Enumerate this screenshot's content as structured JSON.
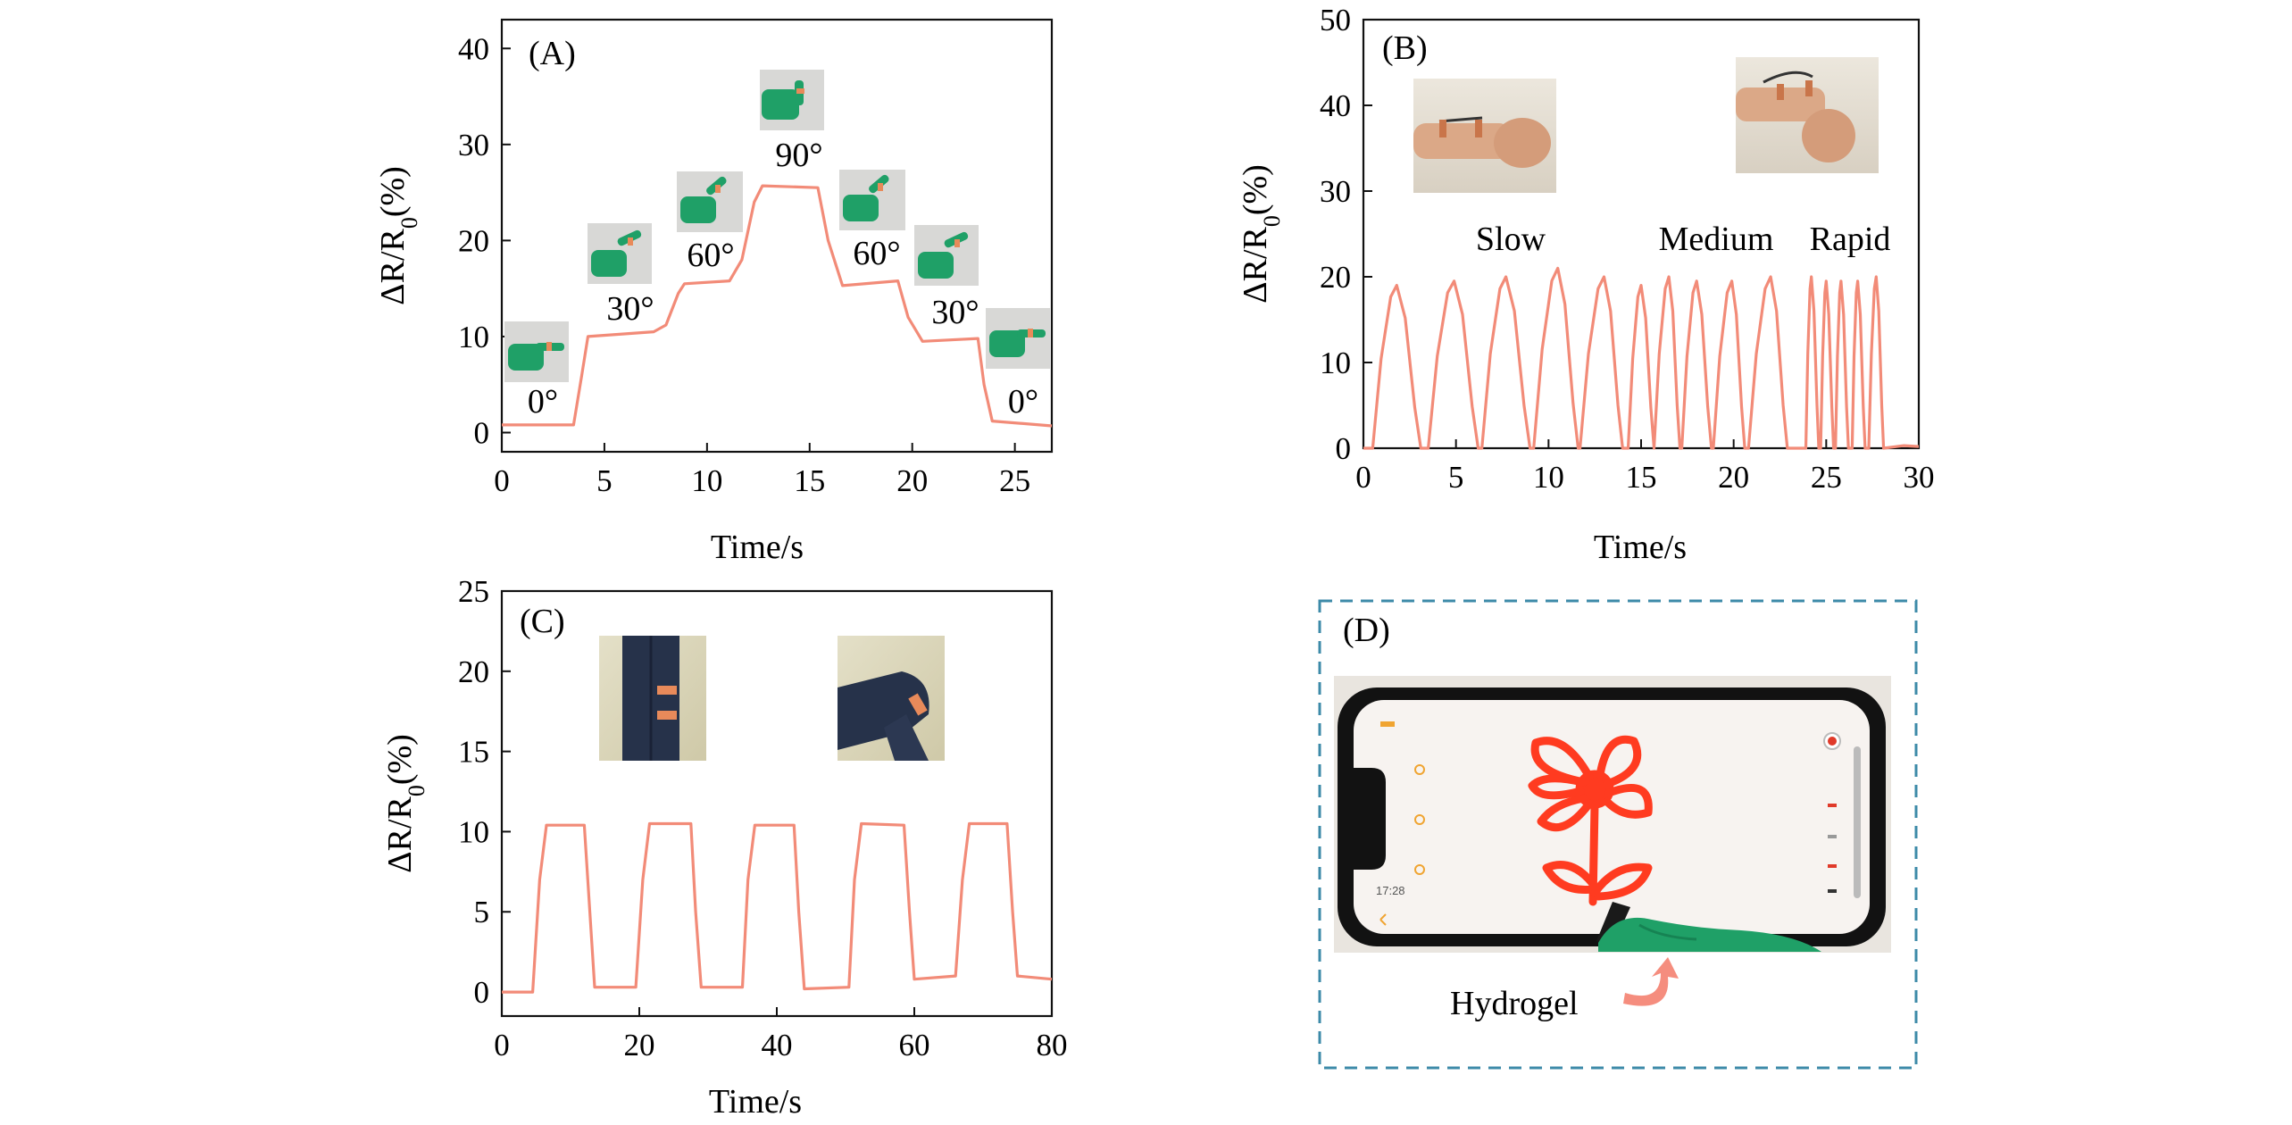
{
  "colors": {
    "trace": "#f28b78",
    "dashed_box": "#3c8aa8",
    "glove": "#1fa067",
    "drawing": "#ff3b20"
  },
  "chart_data": [
    {
      "id": "A",
      "type": "line",
      "panel_label": "(A)",
      "xlabel": "Time/s",
      "ylabel_pre": "ΔR/R",
      "ylabel_sub": "0",
      "ylabel_post": "(%)",
      "xlim": [
        0,
        26.8
      ],
      "ylim": [
        -2,
        43
      ],
      "xticks": [
        0,
        5,
        10,
        15,
        20,
        25
      ],
      "yticks": [
        0,
        10,
        20,
        30,
        40
      ],
      "series": [
        {
          "x": [
            0,
            3.5,
            3.9,
            4.2,
            7.4,
            8.0,
            8.6,
            8.9,
            11.1,
            11.7,
            12.3,
            12.7,
            15.4,
            15.9,
            16.6,
            19.3,
            19.8,
            20.5,
            23.2,
            23.5,
            23.9,
            26.8
          ],
          "y": [
            0.8,
            0.8,
            6,
            10,
            10.5,
            11.2,
            14.5,
            15.5,
            15.8,
            18,
            24,
            25.7,
            25.5,
            20,
            15.3,
            15.8,
            12,
            9.5,
            9.8,
            5,
            1.2,
            0.7
          ]
        }
      ],
      "annotations": [
        "0°",
        "30°",
        "60°",
        "90°",
        "60°",
        "30°",
        "0°"
      ]
    },
    {
      "id": "B",
      "type": "line",
      "panel_label": "(B)",
      "xlabel": "Time/s",
      "ylabel_pre": "ΔR/R",
      "ylabel_sub": "0",
      "ylabel_post": "(%)",
      "xlim": [
        0,
        30
      ],
      "ylim": [
        0,
        50
      ],
      "xticks": [
        0,
        5,
        10,
        15,
        20,
        25,
        30
      ],
      "yticks": [
        0,
        10,
        20,
        30,
        40,
        50
      ],
      "series": [
        {
          "peaks": [
            {
              "s": 0.5,
              "p": 1.8,
              "e": 3.1,
              "v": 19
            },
            {
              "s": 3.5,
              "p": 4.9,
              "e": 6.2,
              "v": 19.5
            },
            {
              "s": 6.4,
              "p": 7.7,
              "e": 9.0,
              "v": 20
            },
            {
              "s": 9.2,
              "p": 10.5,
              "e": 11.6,
              "v": 21
            },
            {
              "s": 11.7,
              "p": 13.0,
              "e": 14.0,
              "v": 20
            },
            {
              "s": 14.3,
              "p": 15.0,
              "e": 15.7,
              "v": 19
            },
            {
              "s": 15.7,
              "p": 16.5,
              "e": 17.1,
              "v": 20
            },
            {
              "s": 17.2,
              "p": 18.0,
              "e": 18.8,
              "v": 19.5
            },
            {
              "s": 18.9,
              "p": 19.9,
              "e": 20.6,
              "v": 19.5
            },
            {
              "s": 20.8,
              "p": 22.0,
              "e": 22.9,
              "v": 20
            },
            {
              "s": 23.9,
              "p": 24.2,
              "e": 24.6,
              "v": 20
            },
            {
              "s": 24.7,
              "p": 25.0,
              "e": 25.4,
              "v": 19.5
            },
            {
              "s": 25.5,
              "p": 25.8,
              "e": 26.2,
              "v": 19.5
            },
            {
              "s": 26.4,
              "p": 26.7,
              "e": 27.1,
              "v": 19.5
            },
            {
              "s": 27.3,
              "p": 27.7,
              "e": 28.1,
              "v": 20
            }
          ]
        }
      ],
      "annotations": [
        "Slow",
        "Medium",
        "Rapid"
      ]
    },
    {
      "id": "C",
      "type": "line",
      "panel_label": "(C)",
      "xlabel": "Time/s",
      "ylabel_pre": "ΔR/R",
      "ylabel_sub": "0",
      "ylabel_post": "(%)",
      "xlim": [
        0,
        80
      ],
      "ylim": [
        -1.5,
        25
      ],
      "xticks": [
        0,
        20,
        40,
        60,
        80
      ],
      "yticks": [
        0,
        5,
        10,
        15,
        20,
        25
      ],
      "series": [
        {
          "x": [
            0,
            4.5,
            5.5,
            6.5,
            12,
            12.8,
            13.5,
            19.5,
            20.5,
            21.5,
            27.5,
            28.2,
            29,
            35,
            35.8,
            36.8,
            42.5,
            43.2,
            44,
            50.5,
            51.3,
            52.3,
            58.5,
            59.3,
            60,
            66,
            67,
            68,
            73.5,
            74.3,
            75,
            80
          ],
          "y": [
            0,
            0,
            7,
            10.4,
            10.4,
            5,
            0.3,
            0.3,
            7,
            10.5,
            10.5,
            5,
            0.3,
            0.3,
            7,
            10.4,
            10.4,
            5,
            0.2,
            0.3,
            7,
            10.5,
            10.4,
            5,
            0.8,
            1.0,
            7,
            10.5,
            10.5,
            5,
            1.0,
            0.8
          ]
        }
      ]
    }
  ],
  "panel_d": {
    "label": "(D)",
    "caption": "Hydrogel",
    "status_time": "17:28"
  }
}
